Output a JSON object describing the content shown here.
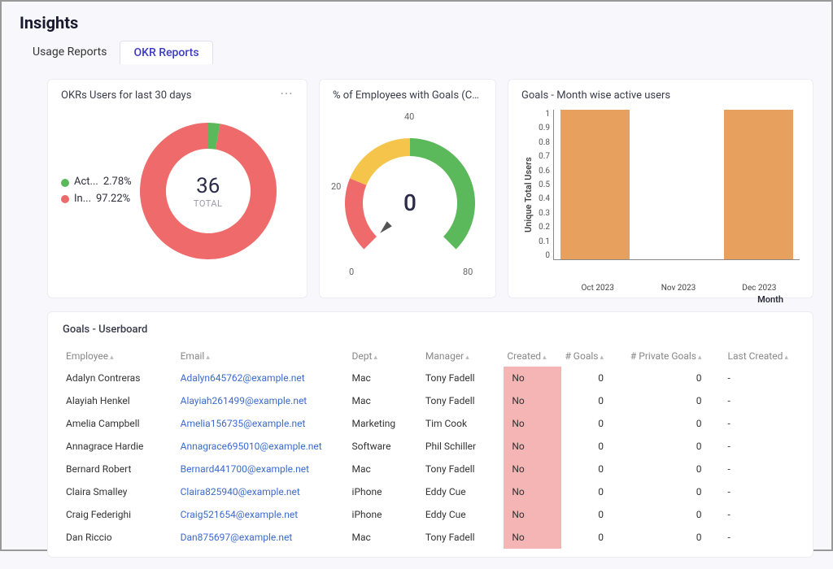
{
  "page": {
    "title": "Insights"
  },
  "tabs": {
    "usage": "Usage Reports",
    "okr": "OKR Reports"
  },
  "donut_card": {
    "title": "OKRs Users for last 30 days",
    "total_value": "36",
    "total_label": "TOTAL",
    "series": [
      {
        "label": "Act...",
        "pct": "2.78%",
        "color": "#5bb85b",
        "value": 2.78
      },
      {
        "label": "In...",
        "pct": "97.22%",
        "color": "#ef6b6b",
        "value": 97.22
      }
    ],
    "ring_width": 32,
    "background": "#ffffff"
  },
  "gauge_card": {
    "title": "% of Employees with Goals (Curren...",
    "center_value": "0",
    "ticks": {
      "min": "0",
      "q1": "20",
      "mid": "40",
      "max": "80"
    },
    "segments": [
      {
        "color": "#ef6b6b",
        "end": 20
      },
      {
        "color": "#f4c54a",
        "end": 40
      },
      {
        "color": "#5bb85b",
        "end": 80
      }
    ],
    "needle_value": 0,
    "max": 80
  },
  "bar_card": {
    "title": "Goals - Month wise active users",
    "y_label": "Unique Total Users",
    "x_label": "Month",
    "y_ticks": [
      "1",
      "0.9",
      "0.8",
      "0.7",
      "0.6",
      "0.5",
      "0.4",
      "0.3",
      "0.2",
      "0.1",
      "0"
    ],
    "y_max": 1,
    "categories": [
      "Oct 2023",
      "Nov 2023",
      "Dec 2023"
    ],
    "values": [
      1,
      0,
      1
    ],
    "bar_color": "#e8a05f",
    "bar_width_pct": 28
  },
  "table": {
    "title": "Goals - Userboard",
    "columns": {
      "employee": "Employee",
      "email": "Email",
      "dept": "Dept",
      "manager": "Manager",
      "created": "Created",
      "goals": "# Goals",
      "private": "# Private Goals",
      "last": "Last Created"
    },
    "rows": [
      {
        "employee": "Adalyn Contreras",
        "email": "Adalyn645762@example.net",
        "dept": "Mac",
        "manager": "Tony Fadell",
        "created": "No",
        "goals": "0",
        "private": "0",
        "last": "-"
      },
      {
        "employee": "Alayiah Henkel",
        "email": "Alayiah261499@example.net",
        "dept": "Mac",
        "manager": "Tony Fadell",
        "created": "No",
        "goals": "0",
        "private": "0",
        "last": "-"
      },
      {
        "employee": "Amelia Campbell",
        "email": "Amelia156735@example.net",
        "dept": "Marketing",
        "manager": "Tim Cook",
        "created": "No",
        "goals": "0",
        "private": "0",
        "last": "-"
      },
      {
        "employee": "Annagrace Hardie",
        "email": "Annagrace695010@example.net",
        "dept": "Software",
        "manager": "Phil Schiller",
        "created": "No",
        "goals": "0",
        "private": "0",
        "last": "-"
      },
      {
        "employee": "Bernard Robert",
        "email": "Bernard441700@example.net",
        "dept": "Mac",
        "manager": "Tony Fadell",
        "created": "No",
        "goals": "0",
        "private": "0",
        "last": "-"
      },
      {
        "employee": "Claira Smalley",
        "email": "Claira825940@example.net",
        "dept": "iPhone",
        "manager": "Eddy Cue",
        "created": "No",
        "goals": "0",
        "private": "0",
        "last": "-"
      },
      {
        "employee": "Craig Federighi",
        "email": "Craig521654@example.net",
        "dept": "iPhone",
        "manager": "Eddy Cue",
        "created": "No",
        "goals": "0",
        "private": "0",
        "last": "-"
      },
      {
        "employee": "Dan Riccio",
        "email": "Dan875697@example.net",
        "dept": "Mac",
        "manager": "Tony Fadell",
        "created": "No",
        "goals": "0",
        "private": "0",
        "last": "-"
      }
    ]
  }
}
